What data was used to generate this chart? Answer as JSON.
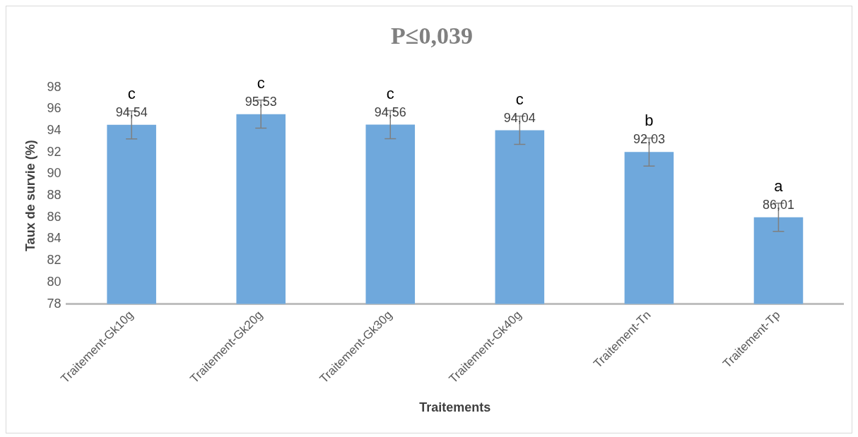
{
  "chart_data": {
    "type": "bar",
    "title": "P≤0,039",
    "xlabel": "Traitements",
    "ylabel": "Taux de survie (%)",
    "categories": [
      "Traitement-Gk10g",
      "Traitement-Gk20g",
      "Traitement-Gk30g",
      "Traitement-Gk40g",
      "Traitement-Tn",
      "Traitement-Tp"
    ],
    "values": [
      94.54,
      95.53,
      94.56,
      94.04,
      92.03,
      86.01
    ],
    "value_labels": [
      "94,54",
      "95,53",
      "94,56",
      "94,04",
      "92,03",
      "86,01"
    ],
    "errors": [
      1.3,
      1.3,
      1.3,
      1.3,
      1.3,
      1.3
    ],
    "color": "#6fa8dc",
    "ylim": [
      78,
      98
    ],
    "yticks": [
      78,
      80,
      82,
      84,
      86,
      88,
      90,
      92,
      94,
      96,
      98
    ],
    "grid": false,
    "legend": false,
    "annotations": [
      "c",
      "c",
      "c",
      "c",
      "b",
      "a"
    ]
  }
}
